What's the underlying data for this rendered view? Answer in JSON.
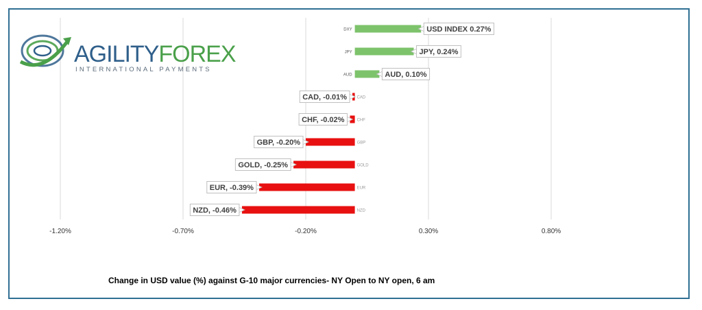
{
  "logo": {
    "word_part1": "AGILITY",
    "word_part2": "FOREX",
    "subtitle": "INTERNATIONAL PAYMENTS",
    "colors": {
      "blue": "#2f5f8a",
      "green": "#4aa04a"
    }
  },
  "caption": "Change in  USD value (%)  against  G-10 major currencies- NY Open to NY open, 6 am",
  "chart_data": {
    "type": "bar",
    "orientation": "horizontal",
    "categories": [
      "DXY",
      "JPY",
      "AUD",
      "CAD",
      "CHF",
      "GBP",
      "GOLD",
      "EUR",
      "NZD"
    ],
    "values": [
      0.27,
      0.24,
      0.1,
      -0.01,
      -0.02,
      -0.2,
      -0.25,
      -0.39,
      -0.46
    ],
    "data_labels": [
      "USD INDEX 0.27%",
      "JPY, 0.24%",
      "AUD, 0.10%",
      "CAD, -0.01%",
      "CHF, -0.02%",
      "GBP, -0.20%",
      "GOLD, -0.25%",
      "EUR, -0.39%",
      "NZD, -0.46%"
    ],
    "x_ticks": [
      "-1.20%",
      "-0.70%",
      "-0.20%",
      "0.30%",
      "0.80%"
    ],
    "x_tick_values": [
      -1.2,
      -0.7,
      -0.2,
      0.3,
      0.8
    ],
    "xlim": [
      -1.2,
      0.8
    ],
    "xlabel": "",
    "ylabel": "",
    "grid": "vertical",
    "legend": "none",
    "colors": {
      "positive": "#7dc36b",
      "negative": "#e81010",
      "grid": "#d9d9d9",
      "label_border": "#bfbfbf"
    }
  }
}
